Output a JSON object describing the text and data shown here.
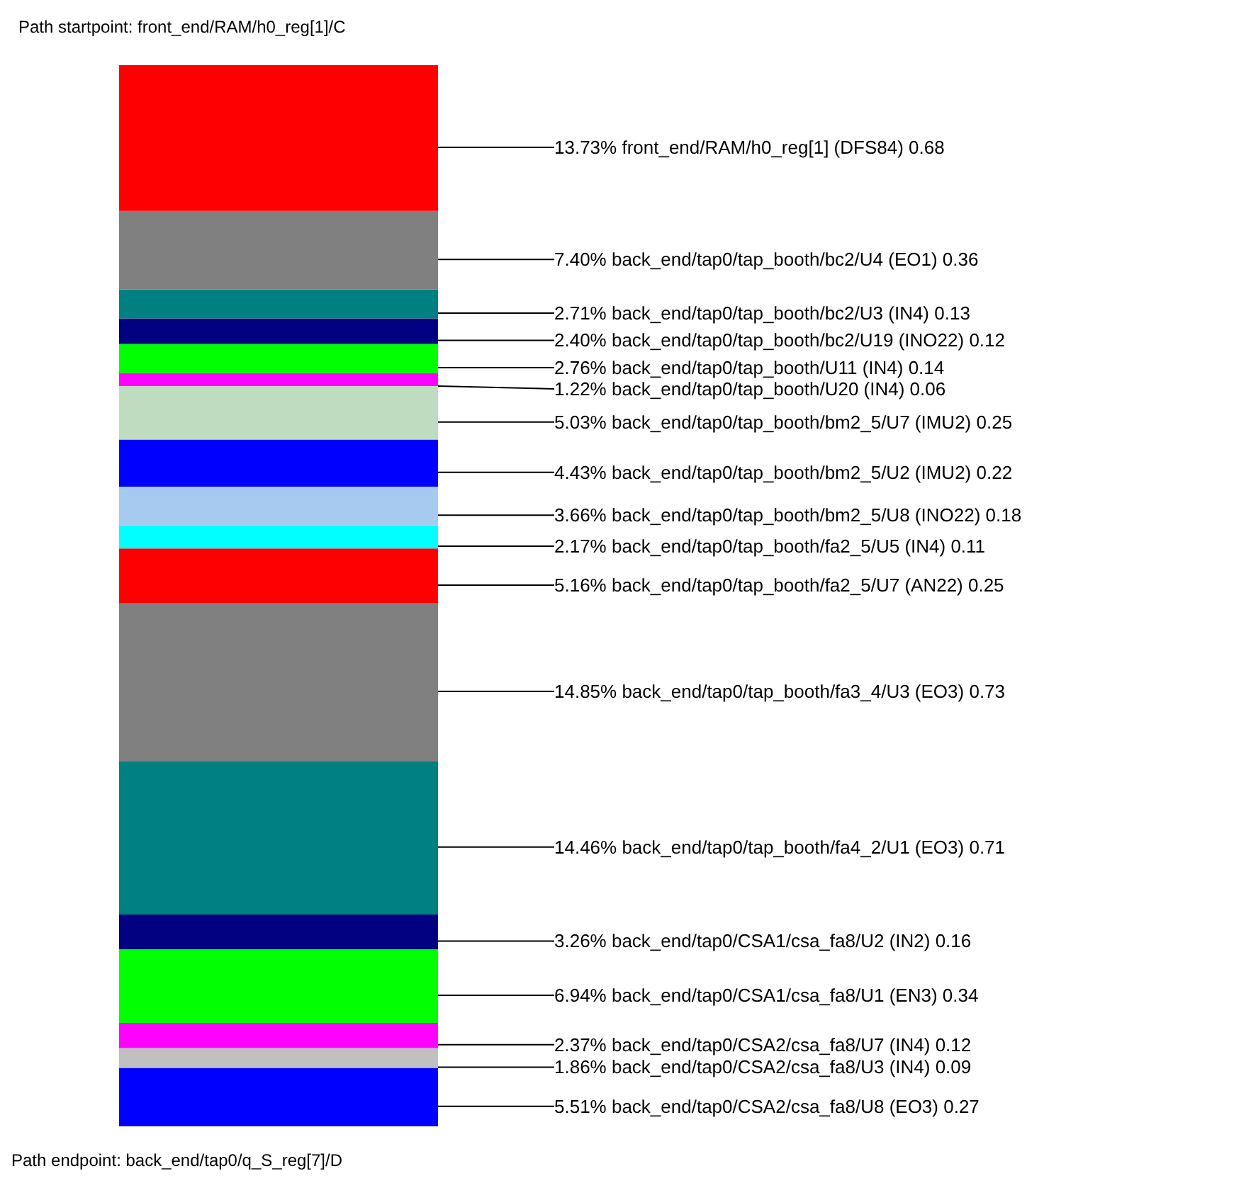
{
  "chart_data": {
    "type": "bar",
    "stacked": true,
    "tick_labels": false,
    "categories": [
      null
    ],
    "title": "Path startpoint: front_end/RAM/h0_reg[1]/C",
    "annotations": [
      "Path endpoint: back_end/tap0/q_S_reg[7]/D"
    ],
    "series": [
      {
        "color": "#0000ff",
        "values": [
          5.51
        ],
        "value_labels": [
          "5.51% back_end/tap0/CSA2/csa_fa8/U8 (EO3) 0.27"
        ]
      },
      {
        "color": "#c0c0c0",
        "values": [
          1.86
        ],
        "value_labels": [
          "1.86% back_end/tap0/CSA2/csa_fa8/U3 (IN4) 0.09"
        ]
      },
      {
        "color": "#ff00ff",
        "values": [
          2.37
        ],
        "value_labels": [
          "2.37% back_end/tap0/CSA2/csa_fa8/U7 (IN4) 0.12"
        ]
      },
      {
        "color": "#00ff00",
        "values": [
          6.94
        ],
        "value_labels": [
          "6.94% back_end/tap0/CSA1/csa_fa8/U1 (EN3) 0.34"
        ]
      },
      {
        "color": "#000080",
        "values": [
          3.26
        ],
        "value_labels": [
          "3.26% back_end/tap0/CSA1/csa_fa8/U2 (IN2) 0.16"
        ]
      },
      {
        "color": "#008080",
        "values": [
          14.46
        ],
        "value_labels": [
          "14.46% back_end/tap0/tap_booth/fa4_2/U1 (EO3) 0.71"
        ]
      },
      {
        "color": "#808080",
        "values": [
          14.85
        ],
        "value_labels": [
          "14.85% back_end/tap0/tap_booth/fa3_4/U3 (EO3) 0.73"
        ]
      },
      {
        "color": "#ff0000",
        "values": [
          5.16
        ],
        "value_labels": [
          "5.16% back_end/tap0/tap_booth/fa2_5/U7 (AN22) 0.25"
        ]
      },
      {
        "color": "#00ffff",
        "values": [
          2.17
        ],
        "value_labels": [
          "2.17% back_end/tap0/tap_booth/fa2_5/U5 (IN4) 0.11"
        ]
      },
      {
        "color": "#a6caf0",
        "values": [
          3.66
        ],
        "value_labels": [
          "3.66% back_end/tap0/tap_booth/bm2_5/U8 (INO22) 0.18"
        ]
      },
      {
        "color": "#0000ff",
        "values": [
          4.43
        ],
        "value_labels": [
          "4.43% back_end/tap0/tap_booth/bm2_5/U2 (IMU2) 0.22"
        ]
      },
      {
        "color": "#c0dcc0",
        "values": [
          5.03
        ],
        "value_labels": [
          "5.03% back_end/tap0/tap_booth/bm2_5/U7 (IMU2) 0.25"
        ]
      },
      {
        "color": "#ff00ff",
        "values": [
          1.22
        ],
        "value_labels": [
          "1.22% back_end/tap0/tap_booth/U20 (IN4) 0.06"
        ]
      },
      {
        "color": "#00ff00",
        "values": [
          2.76
        ],
        "value_labels": [
          "2.76% back_end/tap0/tap_booth/U11 (IN4) 0.14"
        ]
      },
      {
        "color": "#000080",
        "values": [
          2.4
        ],
        "value_labels": [
          "2.40% back_end/tap0/tap_booth/bc2/U19 (INO22) 0.12"
        ]
      },
      {
        "color": "#008080",
        "values": [
          2.71
        ],
        "value_labels": [
          "2.71% back_end/tap0/tap_booth/bc2/U3 (IN4) 0.13"
        ]
      },
      {
        "color": "#808080",
        "values": [
          7.4
        ],
        "value_labels": [
          "7.40% back_end/tap0/tap_booth/bc2/U4 (EO1) 0.36"
        ]
      },
      {
        "color": "#ff0000",
        "values": [
          13.73
        ],
        "value_labels": [
          "13.73% front_end/RAM/h0_reg[1] (DFS84) 0.68"
        ]
      }
    ]
  }
}
